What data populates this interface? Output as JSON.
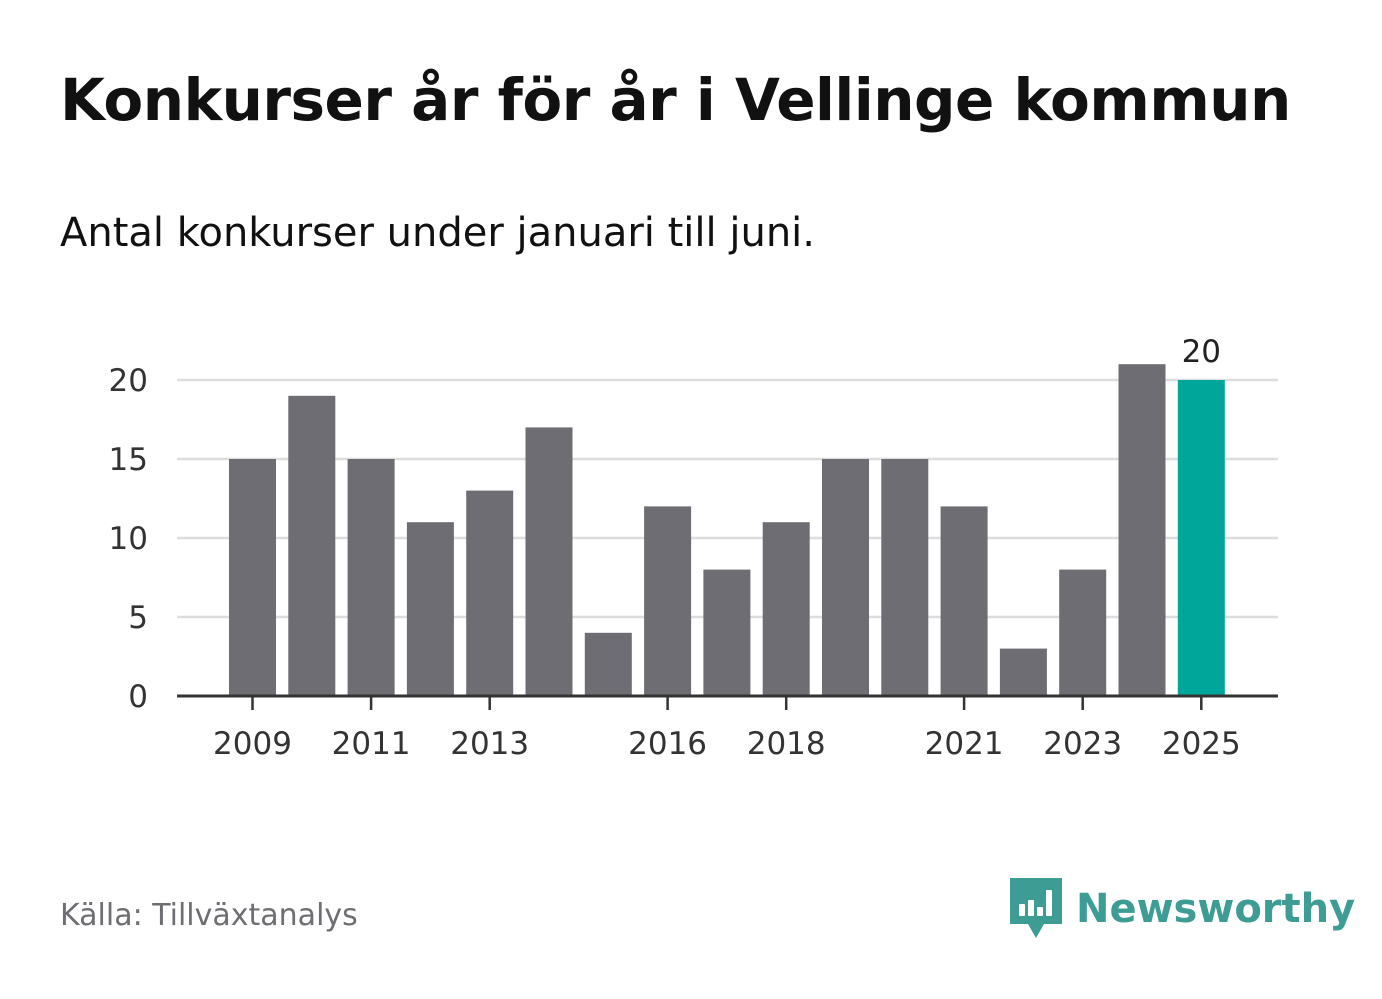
{
  "header": {
    "title": "Konkurser år för år i Vellinge kommun",
    "subtitle": "Antal konkurser under januari till juni."
  },
  "footer": {
    "source": "Källa: Tillväxtanalys",
    "brand": "Newsworthy",
    "brand_icon": "newsworthy-logo-icon"
  },
  "colors": {
    "bar": "#6e6d73",
    "highlight": "#00a69a",
    "grid": "#dddddd",
    "axis": "#333333",
    "text": "#333333",
    "brand": "#3d9c94"
  },
  "chart_data": {
    "type": "bar",
    "title": "",
    "xlabel": "",
    "ylabel": "",
    "categories": [
      "2009",
      "2010",
      "2011",
      "2012",
      "2013",
      "2014",
      "2015",
      "2016",
      "2017",
      "2018",
      "2019",
      "2020",
      "2021",
      "2022",
      "2023",
      "2024",
      "2025"
    ],
    "values": [
      15,
      19,
      15,
      11,
      13,
      17,
      4,
      12,
      8,
      11,
      15,
      15,
      12,
      3,
      8,
      21,
      20
    ],
    "x_tick_labels": [
      "2009",
      "2011",
      "2013",
      "2016",
      "2018",
      "2021",
      "2023",
      "2025"
    ],
    "y_ticks": [
      0,
      5,
      10,
      15,
      20
    ],
    "ylim": [
      0,
      22
    ],
    "grid": true,
    "highlight_category": "2025",
    "data_labels": [
      {
        "category": "2025",
        "text": "20"
      }
    ]
  }
}
